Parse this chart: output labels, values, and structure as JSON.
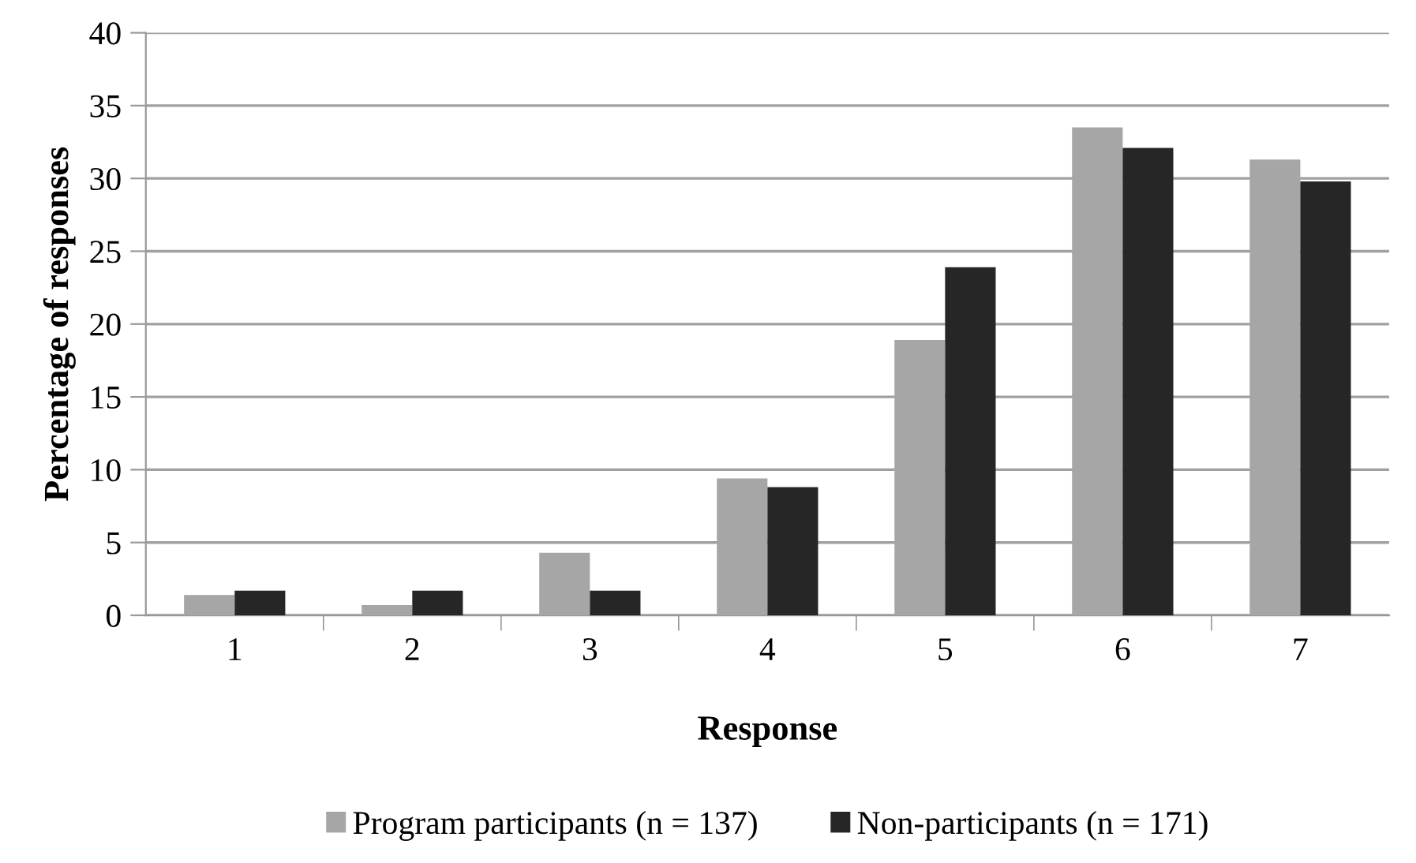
{
  "chart_data": {
    "type": "bar",
    "xlabel": "Response",
    "ylabel": "Percentage of responses",
    "categories": [
      "1",
      "2",
      "3",
      "4",
      "5",
      "6",
      "7"
    ],
    "series": [
      {
        "name": "Program participants (n = 137)",
        "color": "#a6a6a6",
        "values": [
          1.4,
          0.7,
          4.3,
          9.4,
          18.9,
          33.5,
          31.3
        ]
      },
      {
        "name": "Non-participants (n = 171)",
        "color": "#262626",
        "values": [
          1.7,
          1.7,
          1.7,
          8.8,
          23.9,
          32.1,
          29.8
        ]
      }
    ],
    "ylim": [
      0,
      40
    ],
    "yticks": [
      0,
      5,
      10,
      15,
      20,
      25,
      30,
      35,
      40
    ],
    "grid": "y",
    "legend": "bottom"
  }
}
